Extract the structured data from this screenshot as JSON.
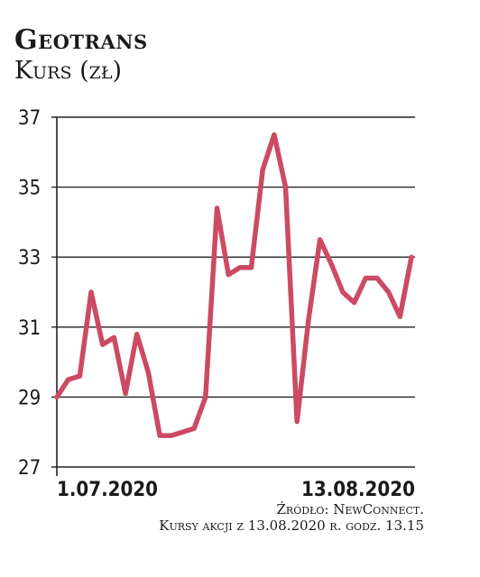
{
  "header": {
    "title": "Geotrans",
    "subtitle": "Kurs (zł)"
  },
  "footer": {
    "source": "Źródło: NewConnect.",
    "note": "Kursy akcji z 13.08.2020 r. godz. 13.15"
  },
  "colors": {
    "line": "#cc4a63",
    "grid": "#222222",
    "text": "#1a1a1a"
  },
  "chart_data": {
    "type": "line",
    "title": "Geotrans",
    "subtitle": "Kurs (zł)",
    "ylim": [
      27,
      37
    ],
    "yticks": [
      27,
      29,
      31,
      33,
      35,
      37
    ],
    "xtick_labels": [
      "1.07.2020",
      "13.08.2020"
    ],
    "grid": true,
    "series": [
      {
        "values": [
          29.0,
          29.5,
          29.6,
          32.0,
          30.5,
          30.7,
          29.1,
          30.8,
          29.7,
          27.9,
          27.9,
          28.0,
          28.1,
          29.0,
          34.4,
          32.5,
          32.7,
          32.7,
          35.5,
          36.5,
          35.0,
          28.3,
          31.2,
          33.5,
          32.8,
          32.0,
          31.7,
          32.4,
          32.4,
          32.0,
          31.3,
          33.0
        ]
      }
    ]
  }
}
